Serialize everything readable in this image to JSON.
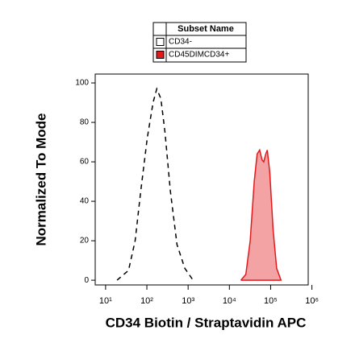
{
  "chart_data": {
    "type": "histogram-overlay",
    "legend_title": "Subset Name",
    "xlabel": "CD34 Biotin / Straptavidin APC",
    "ylabel": "Normalized To Mode",
    "xscale": "log",
    "xlim": [
      5.6,
      813000
    ],
    "ylim": [
      -2.4,
      104.5
    ],
    "xticks": [
      {
        "value": 10,
        "label": "10¹"
      },
      {
        "value": 100,
        "label": "10²"
      },
      {
        "value": 1000,
        "label": "10³"
      },
      {
        "value": 10000,
        "label": "10⁴"
      },
      {
        "value": 100000,
        "label": "10⁵"
      },
      {
        "value": 1000000,
        "label": "10⁶"
      }
    ],
    "yticks": [
      0,
      20,
      40,
      60,
      80,
      100
    ],
    "series": [
      {
        "name": "CD34-",
        "color": "#000000",
        "style": "dashed",
        "fill": false,
        "x": [
          19,
          36,
          52,
          71,
          102,
          141,
          174,
          219,
          275,
          372,
          537,
          832,
          1318
        ],
        "values": [
          0,
          5,
          20,
          45,
          72,
          90,
          97,
          92,
          75,
          45,
          18,
          6,
          0
        ]
      },
      {
        "name": "CD45DIMCD34+",
        "color": "#e31a1c",
        "style": "solid",
        "fill": true,
        "x": [
          19000,
          25000,
          32000,
          40000,
          47000,
          54000,
          62000,
          68000,
          76000,
          83000,
          95000,
          115000,
          140000,
          178000
        ],
        "values": [
          0,
          3,
          20,
          50,
          64,
          66,
          61,
          60,
          64,
          66,
          55,
          25,
          6,
          0
        ]
      }
    ]
  }
}
